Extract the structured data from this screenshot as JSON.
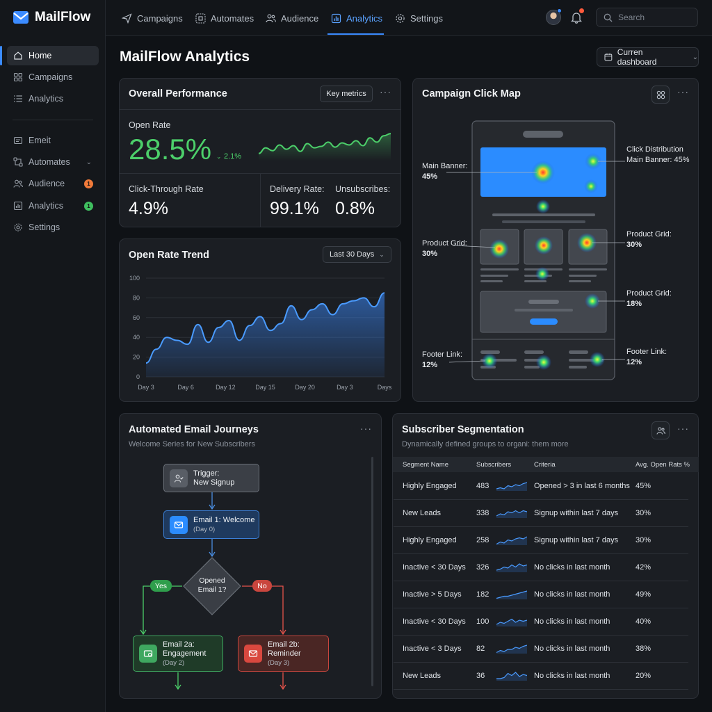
{
  "app": {
    "name": "MailFlow"
  },
  "sidebar": {
    "items": [
      {
        "label": "Home",
        "icon": "home-icon"
      },
      {
        "label": "Campaigns",
        "icon": "grid-icon"
      },
      {
        "label": "Analytics",
        "icon": "list-icon"
      },
      {
        "label": "Emeit",
        "icon": "mail-icon"
      },
      {
        "label": "Automates",
        "icon": "flow-icon"
      },
      {
        "label": "Audience",
        "icon": "users-icon",
        "badge": "1",
        "badge_color": "#f07a3a"
      },
      {
        "label": "Analytics",
        "icon": "chart-icon",
        "badge": "1",
        "badge_color": "#3fbf5f"
      },
      {
        "label": "Settings",
        "icon": "gear-icon"
      }
    ]
  },
  "topnav": {
    "tabs": [
      {
        "label": "Campaigns",
        "icon": "send-icon"
      },
      {
        "label": "Automates",
        "icon": "flow-icon"
      },
      {
        "label": "Audience",
        "icon": "users-icon"
      },
      {
        "label": "Analytics",
        "icon": "chart-icon",
        "active": true
      },
      {
        "label": "Settings",
        "icon": "gear-icon"
      }
    ],
    "search_placeholder": "Search"
  },
  "page": {
    "title": "MailFlow Analytics",
    "dashboard_select": "Curren dashboard"
  },
  "performance": {
    "title": "Overall Performance",
    "key_metrics_label": "Key metrics",
    "open_rate_label": "Open Rate",
    "open_rate_value": "28.5%",
    "open_rate_delta": "2.1%",
    "ctr_label": "Click-Through Rate",
    "ctr_value": "4.9%",
    "delivery_label": "Delivery Rate:",
    "delivery_value": "99.1%",
    "unsub_label": "Unsubscribes:",
    "unsub_value": "0.8%"
  },
  "trend": {
    "title": "Open Rate Trend",
    "range_label": "Last 30 Days"
  },
  "chart_data": {
    "type": "area",
    "title": "Open Rate Trend",
    "x_tick_labels": [
      "Day 3",
      "Day 6",
      "Day 12",
      "Day 15",
      "Day 20",
      "Day 3",
      "Days"
    ],
    "y_tick_labels": [
      "0",
      "20",
      "40",
      "60",
      "80",
      "100"
    ],
    "ylim": [
      0,
      100
    ],
    "grid": true,
    "series": [
      {
        "values": [
          14,
          28,
          40,
          37,
          33,
          53,
          35,
          50,
          57,
          37,
          52,
          61,
          47,
          54,
          72,
          58,
          68,
          74,
          63,
          74,
          77,
          80,
          71,
          85
        ]
      }
    ]
  },
  "clickmap": {
    "title": "Campaign Click Map",
    "left_labels": [
      {
        "name": "Main Banner:",
        "value": "45%"
      },
      {
        "name": "Product Grid:",
        "value": "30%"
      },
      {
        "name": "Footer Link:",
        "value": "12%"
      }
    ],
    "right_labels": [
      {
        "name": "Click Distribution",
        "value": "Main Banner: 45%"
      },
      {
        "name": "Product Grid:",
        "value": "30%"
      },
      {
        "name": "Product Grid:",
        "value": "18%"
      },
      {
        "name": "Footer Link:",
        "value": "12%"
      }
    ]
  },
  "journeys": {
    "title": "Automated Email Journeys",
    "subtitle": "Welcome Series for New Subscribers",
    "trigger": {
      "line1": "Trigger:",
      "line2": "New Signup"
    },
    "email1": {
      "line1": "Email 1: Welcome",
      "line2": "(Day 0)"
    },
    "decision": {
      "line1": "Opened",
      "line2": "Email 1?"
    },
    "yes": "Yes",
    "no": "No",
    "email2a": {
      "line1": "Email 2a:",
      "line2": "Engagement",
      "line3": "(Day 2)"
    },
    "email2b": {
      "line1": "Email 2b:",
      "line2": "Reminder",
      "line3": "(Day 3)"
    }
  },
  "segmentation": {
    "title": "Subscriber Segmentation",
    "subtitle": "Dynamically defined groups to organi: them more",
    "columns": [
      "Segment Name",
      "Subscribers",
      "Criteria",
      "Avg. Open Rats %"
    ],
    "rows": [
      {
        "name": "Highly Engaged",
        "subs": "483",
        "criteria": "Opened > 3 in last 6 months",
        "rate": "45%"
      },
      {
        "name": "New Leads",
        "subs": "338",
        "criteria": "Signup within last 7 days",
        "rate": "30%"
      },
      {
        "name": "Highly Engaged",
        "subs": "258",
        "criteria": "Signup within last 7 days",
        "rate": "30%"
      },
      {
        "name": "Inactive < 30 Days",
        "subs": "326",
        "criteria": "No clicks in last month",
        "rate": "42%"
      },
      {
        "name": "Inactive > 5 Days",
        "subs": "182",
        "criteria": "No clicks in last month",
        "rate": "49%"
      },
      {
        "name": "Inactive < 30 Days",
        "subs": "100",
        "criteria": "No clicks in last month",
        "rate": "40%"
      },
      {
        "name": "Inactive < 3 Days",
        "subs": "82",
        "criteria": "No clicks in last month",
        "rate": "38%"
      },
      {
        "name": "New Leads",
        "subs": "36",
        "criteria": "No clicks in last month",
        "rate": "20%"
      }
    ]
  },
  "colors": {
    "accent": "#3b8bff",
    "positive": "#4ccf6a",
    "negative": "#e5534b",
    "background": "#0f1216"
  }
}
